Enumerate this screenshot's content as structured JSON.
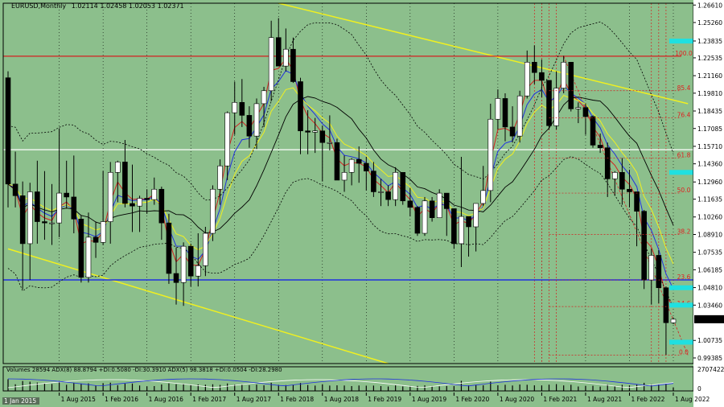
{
  "header": {
    "symbol": "EURUSD,Monthly",
    "ohlc": "1.02114 1.02458 1.02053 1.02371"
  },
  "indicator_header": "Volumes 28594  ADX(8) 88.8794 +DI:0.5080 -DI:30.3910  ADX(5) 98.3818 +DI:0.0504 -DI:28.2980",
  "colors": {
    "bg": "#8cbf8c",
    "bull": "#ffffff",
    "bear": "#000000",
    "red": "#d42020",
    "blue": "#2030e0",
    "yellow": "#f0f020",
    "cyan": "#20e0e0"
  },
  "price_axis": {
    "ticks": [
      "1.26610",
      "1.25260",
      "1.23835",
      "1.22535",
      "1.21160",
      "1.19810",
      "1.18435",
      "1.17085",
      "1.15710",
      "1.14360",
      "1.12960",
      "1.11635",
      "1.10260",
      "1.08910",
      "1.07535",
      "1.06185",
      "1.04810",
      "1.03460",
      "1.02371",
      "1.00735",
      "0.99385"
    ],
    "current": "1.02371"
  },
  "volume_axis": {
    "top": "2707422",
    "zero": "0"
  },
  "date_axis": {
    "first": "1 Jan 2015",
    "labels": [
      "1 Aug 2015",
      "1 Feb 2016",
      "1 Aug 2016",
      "1 Feb 2017",
      "1 Aug 2017",
      "1 Feb 2018",
      "1 Aug 2018",
      "1 Feb 2019",
      "1 Aug 2019",
      "1 Feb 2020",
      "1 Aug 2020",
      "1 Feb 2021",
      "1 Aug 2021",
      "1 Feb 2022",
      "1 Aug 2022"
    ]
  },
  "fib_levels": [
    {
      "label": "100.0",
      "price": 1.2266
    },
    {
      "label": "85.4",
      "price": 1.2
    },
    {
      "label": "76.4",
      "price": 1.179
    },
    {
      "label": "61.8",
      "price": 1.148
    },
    {
      "label": "50.0",
      "price": 1.121
    },
    {
      "label": "38.2",
      "price": 1.089
    },
    {
      "label": "23.6",
      "price": 1.054
    },
    {
      "label": "14.6",
      "price": 1.0335
    },
    {
      "label": "0.0",
      "price": 0.996
    }
  ],
  "chart_data": {
    "type": "candlestick",
    "symbol": "EURUSD,Monthly",
    "ylim": [
      0.9895,
      1.2675
    ],
    "x_start": "2015-01",
    "candles_month_ohlc": [
      [
        1.21,
        1.215,
        1.11,
        1.128
      ],
      [
        1.128,
        1.153,
        1.11,
        1.119
      ],
      [
        1.119,
        1.13,
        1.047,
        1.082
      ],
      [
        1.082,
        1.129,
        1.054,
        1.122
      ],
      [
        1.122,
        1.146,
        1.082,
        1.099
      ],
      [
        1.099,
        1.138,
        1.085,
        1.098
      ],
      [
        1.098,
        1.128,
        1.081,
        1.098
      ],
      [
        1.098,
        1.171,
        1.087,
        1.121
      ],
      [
        1.121,
        1.146,
        1.109,
        1.118
      ],
      [
        1.118,
        1.15,
        1.09,
        1.101
      ],
      [
        1.101,
        1.104,
        1.052,
        1.056
      ],
      [
        1.056,
        1.106,
        1.052,
        1.087
      ],
      [
        1.087,
        1.099,
        1.071,
        1.083
      ],
      [
        1.083,
        1.138,
        1.081,
        1.099
      ],
      [
        1.099,
        1.145,
        1.082,
        1.137
      ],
      [
        1.137,
        1.146,
        1.114,
        1.145
      ],
      [
        1.145,
        1.162,
        1.11,
        1.113
      ],
      [
        1.113,
        1.143,
        1.091,
        1.111
      ],
      [
        1.111,
        1.119,
        1.091,
        1.117
      ],
      [
        1.117,
        1.124,
        1.105,
        1.116
      ],
      [
        1.116,
        1.133,
        1.112,
        1.124
      ],
      [
        1.124,
        1.126,
        1.085,
        1.098
      ],
      [
        1.098,
        1.105,
        1.051,
        1.059
      ],
      [
        1.059,
        1.079,
        1.035,
        1.052
      ],
      [
        1.052,
        1.083,
        1.034,
        1.08
      ],
      [
        1.08,
        1.082,
        1.049,
        1.057
      ],
      [
        1.057,
        1.09,
        1.049,
        1.065
      ],
      [
        1.065,
        1.095,
        1.057,
        1.09
      ],
      [
        1.09,
        1.127,
        1.084,
        1.124
      ],
      [
        1.124,
        1.147,
        1.112,
        1.142
      ],
      [
        1.142,
        1.184,
        1.131,
        1.183
      ],
      [
        1.183,
        1.207,
        1.166,
        1.191
      ],
      [
        1.191,
        1.209,
        1.172,
        1.181
      ],
      [
        1.181,
        1.188,
        1.156,
        1.165
      ],
      [
        1.165,
        1.194,
        1.155,
        1.19
      ],
      [
        1.19,
        1.203,
        1.172,
        1.2
      ],
      [
        1.2,
        1.254,
        1.192,
        1.241
      ],
      [
        1.241,
        1.256,
        1.22,
        1.219
      ],
      [
        1.219,
        1.248,
        1.215,
        1.232
      ],
      [
        1.232,
        1.241,
        1.206,
        1.207
      ],
      [
        1.207,
        1.21,
        1.151,
        1.169
      ],
      [
        1.169,
        1.185,
        1.151,
        1.168
      ],
      [
        1.168,
        1.179,
        1.152,
        1.169
      ],
      [
        1.169,
        1.173,
        1.13,
        1.16
      ],
      [
        1.16,
        1.181,
        1.154,
        1.16
      ],
      [
        1.16,
        1.163,
        1.133,
        1.131
      ],
      [
        1.131,
        1.15,
        1.122,
        1.137
      ],
      [
        1.137,
        1.148,
        1.127,
        1.147
      ],
      [
        1.147,
        1.157,
        1.129,
        1.144
      ],
      [
        1.144,
        1.149,
        1.123,
        1.138
      ],
      [
        1.138,
        1.145,
        1.118,
        1.122
      ],
      [
        1.122,
        1.132,
        1.111,
        1.122
      ],
      [
        1.122,
        1.127,
        1.111,
        1.116
      ],
      [
        1.116,
        1.141,
        1.111,
        1.137
      ],
      [
        1.137,
        1.129,
        1.112,
        1.115
      ],
      [
        1.115,
        1.125,
        1.103,
        1.11
      ],
      [
        1.11,
        1.111,
        1.088,
        1.09
      ],
      [
        1.09,
        1.118,
        1.088,
        1.115
      ],
      [
        1.115,
        1.118,
        1.099,
        1.102
      ],
      [
        1.102,
        1.124,
        1.106,
        1.121
      ],
      [
        1.121,
        1.11,
        1.088,
        1.109
      ],
      [
        1.109,
        1.099,
        1.078,
        1.082
      ],
      [
        1.082,
        1.149,
        1.064,
        1.103
      ],
      [
        1.103,
        1.102,
        1.072,
        1.095
      ],
      [
        1.095,
        1.113,
        1.076,
        1.113
      ],
      [
        1.113,
        1.142,
        1.111,
        1.123
      ],
      [
        1.123,
        1.19,
        1.114,
        1.178
      ],
      [
        1.178,
        1.201,
        1.17,
        1.194
      ],
      [
        1.194,
        1.198,
        1.161,
        1.172
      ],
      [
        1.172,
        1.188,
        1.16,
        1.165
      ],
      [
        1.165,
        1.2,
        1.16,
        1.196
      ],
      [
        1.196,
        1.231,
        1.194,
        1.222
      ],
      [
        1.222,
        1.235,
        1.205,
        1.214
      ],
      [
        1.214,
        1.224,
        1.195,
        1.208
      ],
      [
        1.208,
        1.208,
        1.17,
        1.173
      ],
      [
        1.173,
        1.215,
        1.17,
        1.202
      ],
      [
        1.202,
        1.227,
        1.198,
        1.222
      ],
      [
        1.222,
        1.221,
        1.184,
        1.186
      ],
      [
        1.186,
        1.191,
        1.175,
        1.187
      ],
      [
        1.187,
        1.19,
        1.166,
        1.18
      ],
      [
        1.18,
        1.181,
        1.156,
        1.158
      ],
      [
        1.158,
        1.167,
        1.152,
        1.156
      ],
      [
        1.156,
        1.16,
        1.118,
        1.132
      ],
      [
        1.132,
        1.138,
        1.119,
        1.137
      ],
      [
        1.137,
        1.148,
        1.112,
        1.124
      ],
      [
        1.124,
        1.139,
        1.11,
        1.122
      ],
      [
        1.122,
        1.118,
        1.08,
        1.107
      ],
      [
        1.107,
        1.108,
        1.047,
        1.054
      ],
      [
        1.054,
        1.078,
        1.035,
        1.073
      ],
      [
        1.073,
        1.077,
        1.036,
        1.048
      ],
      [
        1.048,
        1.049,
        0.996,
        1.021
      ],
      [
        1.021,
        1.025,
        1.02,
        1.0237
      ]
    ]
  }
}
